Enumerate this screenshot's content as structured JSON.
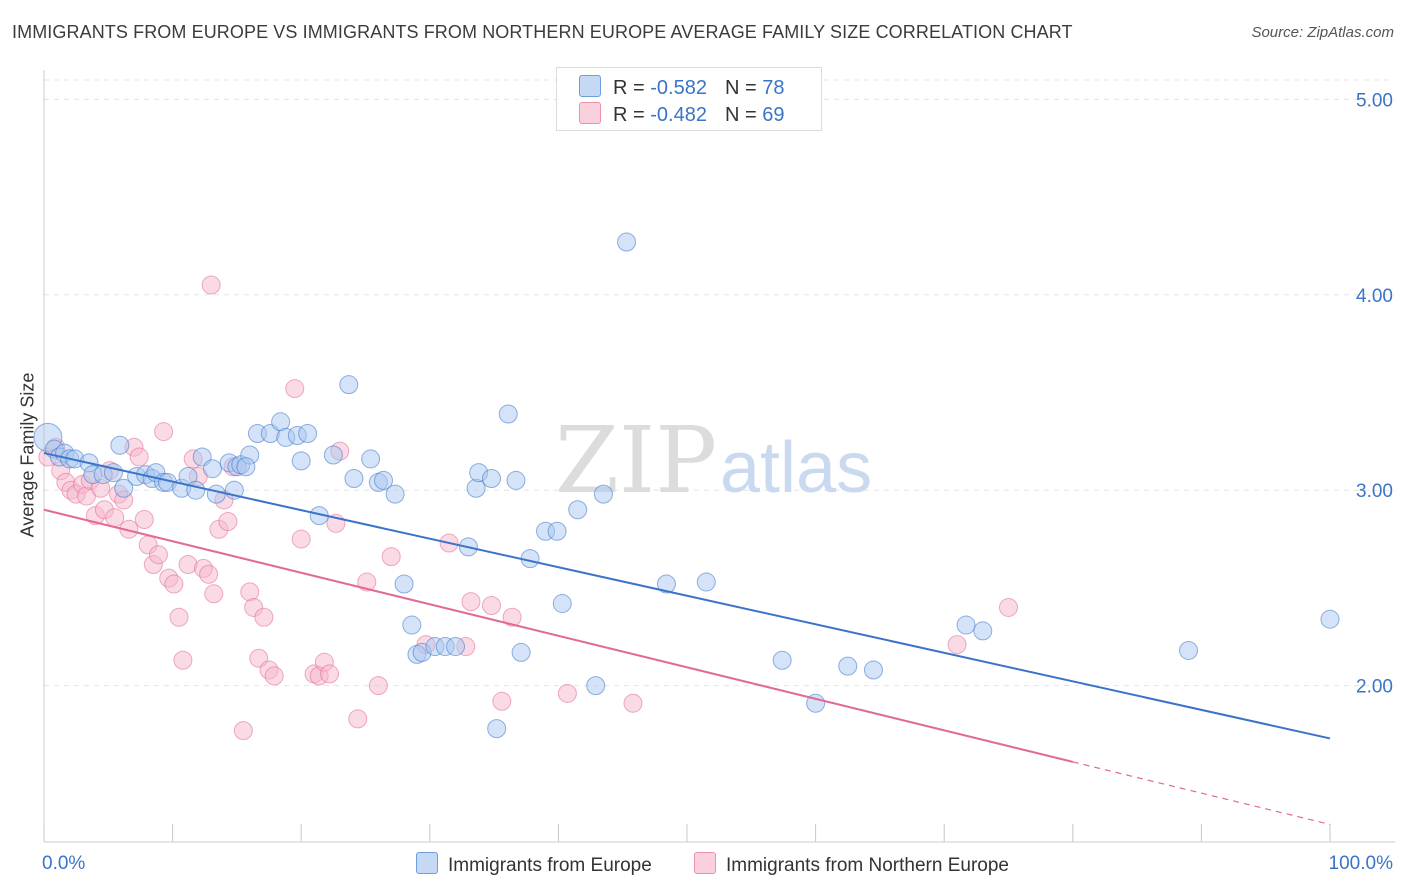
{
  "title": "IMMIGRANTS FROM EUROPE VS IMMIGRANTS FROM NORTHERN EUROPE AVERAGE FAMILY SIZE CORRELATION CHART",
  "source": "Source: ZipAtlas.com",
  "watermark": {
    "zip": "ZIP",
    "atlas": "atlas"
  },
  "legend": {
    "blue": {
      "r_label": "R = ",
      "r_value": "-0.582",
      "n_label": "N = ",
      "n_value": "78"
    },
    "pink": {
      "r_label": "R = ",
      "r_value": "-0.482",
      "n_label": "N = ",
      "n_value": "69"
    }
  },
  "colors": {
    "blue": "#3a74c8",
    "blue_fill": "#a9c8f0",
    "pink": "#e26a96",
    "pink_fill": "#f5b8cb",
    "grid": "#e3e3e3",
    "tick_label": "#3a74c8"
  },
  "chart_data": {
    "type": "scatter",
    "xlabel": "",
    "ylabel": "Average Family Size",
    "xlim": [
      0,
      100
    ],
    "ylim": [
      1.2,
      5.15
    ],
    "x_tick_labels": [
      "0.0%",
      "100.0%"
    ],
    "y_ticks": [
      2.0,
      3.0,
      4.0,
      5.0
    ],
    "y_tick_labels": [
      "2.00",
      "3.00",
      "4.00",
      "5.00"
    ],
    "grid": "horizontal dashed",
    "legend_position": "top-center",
    "series": [
      {
        "name": "Immigrants from Europe",
        "color": "#3a74c8",
        "trend": {
          "x": [
            0,
            100
          ],
          "y": [
            3.19,
            1.73
          ]
        },
        "points": [
          [
            0.3,
            3.27
          ],
          [
            0.8,
            3.21
          ],
          [
            1.2,
            3.17
          ],
          [
            1.6,
            3.19
          ],
          [
            2.0,
            3.16
          ],
          [
            2.4,
            3.16
          ],
          [
            3.5,
            3.14
          ],
          [
            3.8,
            3.08
          ],
          [
            4.6,
            3.08
          ],
          [
            5.4,
            3.09
          ],
          [
            6.2,
            3.01
          ],
          [
            5.9,
            3.23
          ],
          [
            7.2,
            3.07
          ],
          [
            7.9,
            3.08
          ],
          [
            8.4,
            3.06
          ],
          [
            8.7,
            3.09
          ],
          [
            9.3,
            3.04
          ],
          [
            9.6,
            3.04
          ],
          [
            10.7,
            3.01
          ],
          [
            11.2,
            3.07
          ],
          [
            11.8,
            3.0
          ],
          [
            12.3,
            3.17
          ],
          [
            13.1,
            3.11
          ],
          [
            13.4,
            2.98
          ],
          [
            14.4,
            3.14
          ],
          [
            15.0,
            3.12
          ],
          [
            15.3,
            3.13
          ],
          [
            16.0,
            3.18
          ],
          [
            14.8,
            3.0
          ],
          [
            15.7,
            3.12
          ],
          [
            16.6,
            3.29
          ],
          [
            17.6,
            3.29
          ],
          [
            18.4,
            3.35
          ],
          [
            18.8,
            3.27
          ],
          [
            19.7,
            3.28
          ],
          [
            20.0,
            3.15
          ],
          [
            20.5,
            3.29
          ],
          [
            21.4,
            2.87
          ],
          [
            22.5,
            3.18
          ],
          [
            24.1,
            3.06
          ],
          [
            23.7,
            3.54
          ],
          [
            25.4,
            3.16
          ],
          [
            26.0,
            3.04
          ],
          [
            26.4,
            3.05
          ],
          [
            27.3,
            2.98
          ],
          [
            28.0,
            2.52
          ],
          [
            28.6,
            2.31
          ],
          [
            29.0,
            2.16
          ],
          [
            29.4,
            2.17
          ],
          [
            30.4,
            2.2
          ],
          [
            31.2,
            2.2
          ],
          [
            32.0,
            2.2
          ],
          [
            33.0,
            2.71
          ],
          [
            33.6,
            3.01
          ],
          [
            33.8,
            3.09
          ],
          [
            34.8,
            3.06
          ],
          [
            36.1,
            3.39
          ],
          [
            36.7,
            3.05
          ],
          [
            37.1,
            2.17
          ],
          [
            37.8,
            2.65
          ],
          [
            39.0,
            2.79
          ],
          [
            39.9,
            2.79
          ],
          [
            40.3,
            2.42
          ],
          [
            41.5,
            2.9
          ],
          [
            42.9,
            2.0
          ],
          [
            43.5,
            2.98
          ],
          [
            45.3,
            4.27
          ],
          [
            48.4,
            2.52
          ],
          [
            51.5,
            2.53
          ],
          [
            57.4,
            2.13
          ],
          [
            60.0,
            1.91
          ],
          [
            62.5,
            2.1
          ],
          [
            64.5,
            2.08
          ],
          [
            71.7,
            2.31
          ],
          [
            73.0,
            2.28
          ],
          [
            89.0,
            2.18
          ],
          [
            100.0,
            2.34
          ],
          [
            35.2,
            1.78
          ]
        ]
      },
      {
        "name": "Immigrants from Northern Europe",
        "color": "#e26a96",
        "trend": {
          "x": [
            0,
            80,
            100
          ],
          "y": [
            2.9,
            1.61,
            1.29
          ]
        },
        "trend_dashed_from_x": 80,
        "points": [
          [
            0.3,
            3.17
          ],
          [
            0.9,
            3.22
          ],
          [
            1.3,
            3.1
          ],
          [
            1.7,
            3.04
          ],
          [
            2.1,
            3.0
          ],
          [
            2.5,
            2.98
          ],
          [
            3.0,
            3.03
          ],
          [
            3.3,
            2.97
          ],
          [
            3.6,
            3.05
          ],
          [
            4.0,
            2.87
          ],
          [
            4.4,
            3.01
          ],
          [
            4.7,
            2.9
          ],
          [
            5.1,
            3.1
          ],
          [
            5.5,
            2.86
          ],
          [
            5.8,
            2.98
          ],
          [
            6.2,
            2.95
          ],
          [
            6.6,
            2.8
          ],
          [
            7.0,
            3.22
          ],
          [
            7.4,
            3.17
          ],
          [
            7.8,
            2.85
          ],
          [
            8.1,
            2.72
          ],
          [
            8.5,
            2.62
          ],
          [
            8.9,
            2.67
          ],
          [
            9.3,
            3.3
          ],
          [
            9.7,
            2.55
          ],
          [
            10.1,
            2.52
          ],
          [
            10.5,
            2.35
          ],
          [
            10.8,
            2.13
          ],
          [
            11.2,
            2.62
          ],
          [
            11.6,
            3.16
          ],
          [
            12.0,
            3.07
          ],
          [
            12.4,
            2.6
          ],
          [
            12.8,
            2.57
          ],
          [
            13.2,
            2.47
          ],
          [
            13.6,
            2.8
          ],
          [
            14.0,
            2.95
          ],
          [
            14.3,
            2.84
          ],
          [
            14.7,
            3.12
          ],
          [
            13.0,
            4.05
          ],
          [
            15.5,
            1.77
          ],
          [
            16.0,
            2.48
          ],
          [
            16.3,
            2.4
          ],
          [
            16.7,
            2.14
          ],
          [
            17.1,
            2.35
          ],
          [
            17.5,
            2.08
          ],
          [
            17.9,
            2.05
          ],
          [
            19.5,
            3.52
          ],
          [
            20.0,
            2.75
          ],
          [
            21.0,
            2.06
          ],
          [
            21.4,
            2.05
          ],
          [
            21.8,
            2.12
          ],
          [
            22.2,
            2.06
          ],
          [
            22.7,
            2.83
          ],
          [
            23.0,
            3.2
          ],
          [
            24.4,
            1.83
          ],
          [
            25.1,
            2.53
          ],
          [
            26.0,
            2.0
          ],
          [
            27.0,
            2.66
          ],
          [
            29.7,
            2.21
          ],
          [
            31.5,
            2.73
          ],
          [
            32.8,
            2.2
          ],
          [
            33.2,
            2.43
          ],
          [
            34.8,
            2.41
          ],
          [
            35.6,
            1.92
          ],
          [
            36.4,
            2.35
          ],
          [
            40.7,
            1.96
          ],
          [
            45.8,
            1.91
          ],
          [
            71.0,
            2.21
          ],
          [
            75.0,
            2.4
          ]
        ]
      }
    ],
    "extra_points_note": ""
  },
  "bottom_legend": {
    "blue_label": "Immigrants from Europe",
    "pink_label": "Immigrants from Northern Europe"
  }
}
